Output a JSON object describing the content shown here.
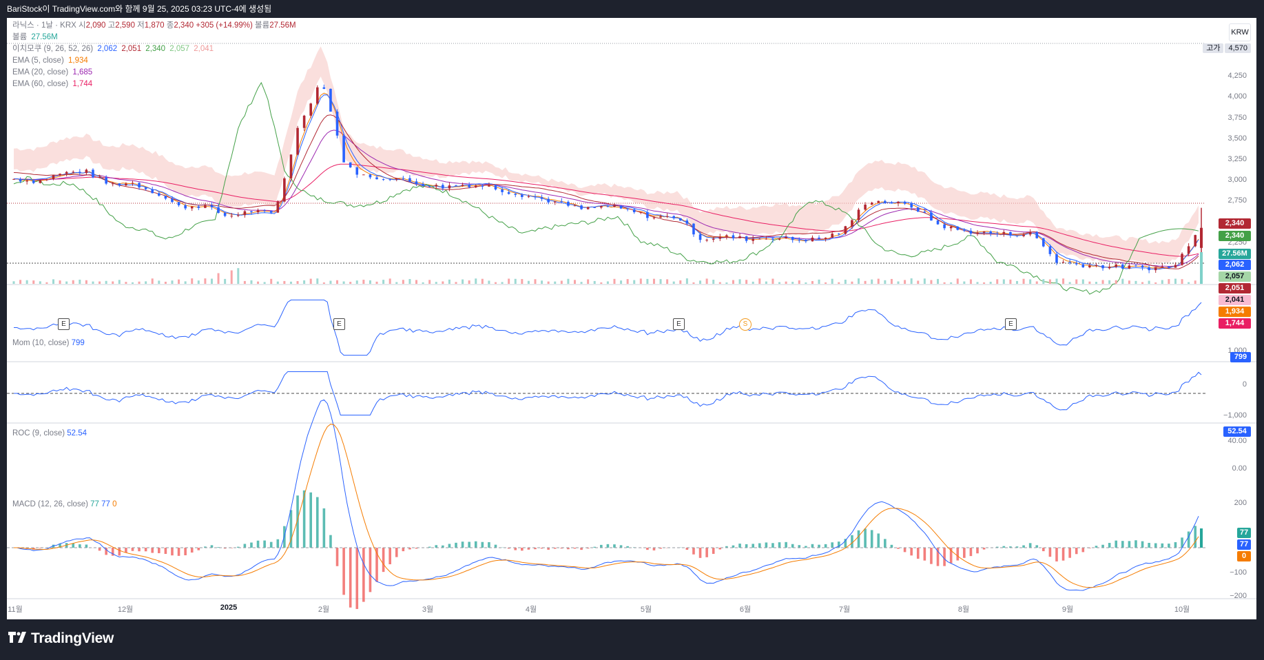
{
  "header": {
    "caption": "BariStock이 TradingView.com와 함께 9월 25, 2025 03:23 UTC-4에 생성됨"
  },
  "legend": {
    "symbol_line": "라닉스 · 1날 · KRX",
    "open_label": "시",
    "open": "2,090",
    "high_label": "고",
    "high": "2,590",
    "low_label": "저",
    "low": "1,870",
    "close_label": "종",
    "close": "2,340",
    "change": "+305 (+14.99%)",
    "volume_label": "볼륨",
    "volume": "27.56M",
    "vol_row_label": "볼륨",
    "vol_row_value": "27.56M",
    "ichimoku_label": "이치모쿠 (9, 26, 52, 26)",
    "ichimoku_values": [
      "2,062",
      "2,051",
      "2,340",
      "2,057",
      "2,041"
    ],
    "ema5_label": "EMA (5, close)",
    "ema5": "1,934",
    "ema20_label": "EMA (20, close)",
    "ema20": "1,685",
    "ema60_label": "EMA (60, close)",
    "ema60": "1,744"
  },
  "currency": "KRW",
  "high_marker": {
    "label": "고가",
    "value": "4,570"
  },
  "price_axis": [
    "4,250",
    "4,000",
    "3,750",
    "3,500",
    "3,250",
    "3,000",
    "2,750",
    "2,250"
  ],
  "price_tags": [
    "2,340",
    "2,340",
    "27.56M",
    "2,062",
    "2,057",
    "2,051",
    "2,041",
    "1,934",
    "1,744"
  ],
  "mom": {
    "label": "Mom (10, close)",
    "value": "799",
    "axis": [
      "1,000",
      "0",
      "−1,000"
    ]
  },
  "roc": {
    "label": "ROC (9, close)",
    "value": "52.54",
    "axis": [
      "40.00",
      "0.00"
    ]
  },
  "macd": {
    "label": "MACD (12, 26, close)",
    "values": [
      "77",
      "77",
      "0"
    ],
    "axis": [
      "200",
      "−100",
      "−200"
    ],
    "tags": [
      "77",
      "77",
      "0"
    ]
  },
  "x_axis": [
    "11월",
    "12월",
    "2025",
    "2월",
    "3월",
    "4월",
    "5월",
    "6월",
    "7월",
    "8월",
    "9월",
    "10월"
  ],
  "event_markers": [
    "E",
    "E",
    "E",
    "E"
  ],
  "split_marker": "S",
  "brand": "TradingView",
  "colors": {
    "up": "#2962ff",
    "down": "#b22833",
    "tenkan": "#2962ff",
    "kijun": "#b22833",
    "lagging": "#43a047",
    "cloud": "#f7c9c6",
    "ema5": "#f57c00",
    "ema20": "#9c27b0",
    "ema60": "#e91e63"
  },
  "chart_data": {
    "type": "candlestick",
    "months": [
      "11월",
      "12월",
      "2025",
      "2월",
      "3월",
      "4월",
      "5월",
      "6월",
      "7월",
      "8월",
      "9월",
      "10월"
    ],
    "close_series": [
      2950,
      2920,
      3020,
      3050,
      2880,
      2900,
      2780,
      2600,
      2620,
      2480,
      2550,
      2510,
      3600,
      4200,
      3100,
      2960,
      2970,
      2900,
      2850,
      2880,
      2860,
      2780,
      2720,
      2650,
      2570,
      2610,
      2550,
      2470,
      2480,
      2200,
      2230,
      2200,
      2220,
      2190,
      2200,
      2300,
      2680,
      2660,
      2600,
      2380,
      2300,
      2280,
      2260,
      2270,
      1920,
      1880,
      1860,
      1850,
      1840,
      1860,
      2340
    ],
    "volume_last": "27.56M",
    "ohlc_last": {
      "open": 2090,
      "high": 2590,
      "low": 1870,
      "close": 2340
    }
  }
}
